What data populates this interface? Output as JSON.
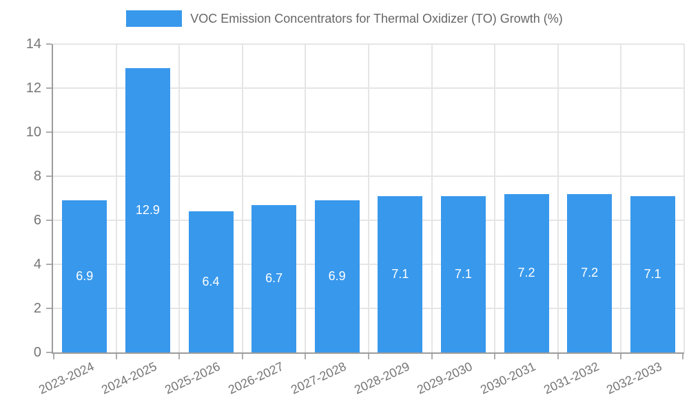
{
  "chart_data": {
    "type": "bar",
    "title": "VOC Emission Concentrators for Thermal Oxidizer (TO) Growth (%)",
    "legend_position": "top",
    "categories": [
      "2023-2024",
      "2024-2025",
      "2025-2026",
      "2026-2027",
      "2027-2028",
      "2028-2029",
      "2029-2030",
      "2030-2031",
      "2031-2032",
      "2032-2033"
    ],
    "values": [
      6.9,
      12.9,
      6.4,
      6.7,
      6.9,
      7.1,
      7.1,
      7.2,
      7.2,
      7.1
    ],
    "value_labels": [
      "6.9",
      "12.9",
      "6.4",
      "6.7",
      "6.9",
      "7.1",
      "7.1",
      "7.2",
      "7.2",
      "7.1"
    ],
    "xlabel": "",
    "ylabel": "",
    "ylim": [
      0,
      14
    ],
    "yticks": [
      0,
      2,
      4,
      6,
      8,
      10,
      12,
      14
    ],
    "ytick_labels": [
      "0",
      "2",
      "4",
      "6",
      "8",
      "10",
      "12",
      "14"
    ],
    "x_tick_rotation_deg": -25,
    "grid": true,
    "bar_color": "#3898EC",
    "grid_color": "#E5E5E5",
    "axis_color": "#9B9B9B",
    "tick_mark_color": "#ADADAD",
    "title_text_color": "#666666",
    "tick_text_color": "#757575",
    "value_text_color": "#FFFFFF",
    "background_color": "#FFFFFF"
  }
}
